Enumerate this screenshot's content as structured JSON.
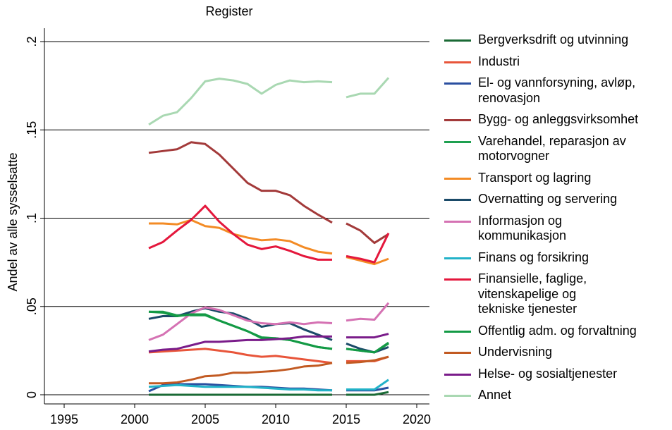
{
  "chart_data": {
    "type": "line",
    "title": "Register",
    "y_label": "Andel av alle sysselsatte",
    "x": [
      2001,
      2002,
      2003,
      2004,
      2005,
      2006,
      2007,
      2008,
      2009,
      2010,
      2011,
      2012,
      2013,
      2014,
      null,
      2015,
      2016,
      2017,
      2018
    ],
    "xlim": [
      1995,
      2020
    ],
    "xticks": [
      1995,
      2000,
      2005,
      2010,
      2015,
      2020
    ],
    "ylim": [
      0,
      0.2
    ],
    "yticks": [
      0,
      {
        "value": 0.05,
        "label": ".05"
      },
      {
        "value": 0.1,
        "label": ".1"
      },
      {
        "value": 0.15,
        "label": ".15"
      },
      {
        "value": 0.2,
        "label": ".2"
      }
    ],
    "grid": true,
    "legend": "right",
    "series": [
      {
        "name": "Bergverksdrift og utvinning",
        "color": "#1a6a35",
        "values": [
          0,
          0,
          0,
          0,
          0,
          0,
          0,
          0,
          0,
          0,
          0,
          0,
          0,
          0,
          null,
          0,
          0,
          0,
          0.0015
        ]
      },
      {
        "name": "Industri",
        "color": "#e8553a",
        "values": [
          0.024,
          0.0245,
          0.025,
          0.0255,
          0.026,
          0.025,
          0.024,
          0.0225,
          0.0215,
          0.022,
          0.021,
          0.02,
          0.019,
          0.018,
          null,
          0.019,
          0.019,
          0.019,
          0.0215
        ]
      },
      {
        "name": "El- og vannforsyning, avløp,\nrenovasjon",
        "color": "#2a4fa0",
        "values": [
          0.002,
          0.0055,
          0.006,
          0.006,
          0.006,
          0.0055,
          0.005,
          0.0045,
          0.0045,
          0.004,
          0.0035,
          0.0035,
          0.003,
          0.0025,
          null,
          0.0025,
          0.0025,
          0.0025,
          0.004
        ]
      },
      {
        "name": "Bygg- og anleggsvirksomhet",
        "color": "#a33a3a",
        "values": [
          0.137,
          0.138,
          0.139,
          0.143,
          0.142,
          0.136,
          0.128,
          0.12,
          0.1155,
          0.1155,
          0.113,
          0.107,
          0.102,
          0.0975,
          null,
          0.097,
          0.093,
          0.086,
          0.091
        ]
      },
      {
        "name": "Varehandel, reparasjon av\nmotorvogner",
        "color": "#1ea050",
        "values": [
          0.047,
          0.047,
          0.045,
          0.045,
          0.045,
          0.042,
          0.039,
          0.036,
          0.032,
          0.032,
          0.031,
          0.029,
          0.027,
          0.026,
          null,
          0.026,
          0.025,
          0.024,
          0.029
        ]
      },
      {
        "name": "Transport og lagring",
        "color": "#f38b25",
        "values": [
          0.097,
          0.097,
          0.0965,
          0.099,
          0.0955,
          0.0945,
          0.091,
          0.089,
          0.0875,
          0.088,
          0.087,
          0.0835,
          0.081,
          0.08,
          null,
          0.078,
          0.076,
          0.074,
          0.077
        ]
      },
      {
        "name": "Overnatting og servering",
        "color": "#1a4a68",
        "values": [
          0.043,
          0.0445,
          0.0445,
          0.047,
          0.049,
          0.047,
          0.046,
          0.043,
          0.0385,
          0.04,
          0.0405,
          0.037,
          0.034,
          0.031,
          null,
          0.029,
          0.026,
          0.024,
          0.027
        ]
      },
      {
        "name": "Informasjon og\nkommunikasjon",
        "color": "#d572b3",
        "values": [
          0.031,
          0.034,
          0.04,
          0.046,
          0.0495,
          0.048,
          0.045,
          0.042,
          0.0405,
          0.04,
          0.041,
          0.04,
          0.041,
          0.0405,
          null,
          0.042,
          0.043,
          0.0425,
          0.052
        ]
      },
      {
        "name": "Finans og forsikring",
        "color": "#22b2c8",
        "values": [
          0.0045,
          0.005,
          0.0055,
          0.005,
          0.0045,
          0.0045,
          0.0045,
          0.0045,
          0.004,
          0.0035,
          0.003,
          0.003,
          0.0025,
          0.0025,
          null,
          0.003,
          0.003,
          0.003,
          0.0085
        ]
      },
      {
        "name": "Finansielle, faglige,\nvitenskapelige og\ntekniske tjenester",
        "color": "#e4173c",
        "values": [
          0.083,
          0.0865,
          0.093,
          0.099,
          0.107,
          0.098,
          0.091,
          0.085,
          0.0825,
          0.084,
          0.0815,
          0.0785,
          0.0765,
          0.0765,
          null,
          0.0785,
          0.077,
          0.075,
          0.0915
        ]
      },
      {
        "name": "Offentlig adm. og forvaltning",
        "color": "#139a45",
        "values": [
          0.047,
          0.0465,
          0.0445,
          0.0455,
          0.0455,
          0.042,
          0.039,
          0.036,
          0.0325,
          0.032,
          0.031,
          0.029,
          0.027,
          0.026,
          null,
          0.026,
          0.025,
          0.024,
          0.0295
        ]
      },
      {
        "name": "Undervisning",
        "color": "#c25a22",
        "values": [
          0.0065,
          0.0065,
          0.007,
          0.0085,
          0.0105,
          0.011,
          0.0125,
          0.0125,
          0.013,
          0.0135,
          0.0145,
          0.016,
          0.0165,
          0.018,
          null,
          0.018,
          0.0185,
          0.0195,
          0.0215
        ]
      },
      {
        "name": "Helse- og sosialtjenester",
        "color": "#7a1c8a",
        "values": [
          0.0245,
          0.0255,
          0.026,
          0.028,
          0.03,
          0.03,
          0.0305,
          0.031,
          0.031,
          0.0315,
          0.032,
          0.033,
          0.033,
          0.033,
          null,
          0.0325,
          0.0325,
          0.0325,
          0.0345
        ]
      },
      {
        "name": "Annet",
        "color": "#a9d8b2",
        "values": [
          0.153,
          0.158,
          0.16,
          0.168,
          0.1775,
          0.179,
          0.178,
          0.176,
          0.1705,
          0.1755,
          0.178,
          0.177,
          0.1775,
          0.177,
          null,
          0.1685,
          0.1705,
          0.1705,
          0.1795
        ]
      }
    ]
  }
}
